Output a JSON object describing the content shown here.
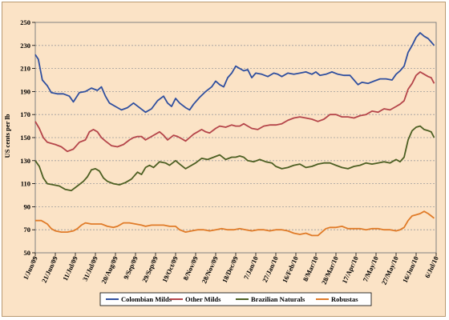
{
  "chart_data": {
    "type": "line",
    "title": "",
    "xlabel": "",
    "ylabel": "US cents per lb",
    "ylim": [
      50,
      250
    ],
    "yticks": [
      50,
      70,
      90,
      110,
      130,
      150,
      170,
      190,
      210,
      230,
      250
    ],
    "x_tick_labels": [
      "1/Jun/09",
      "21/Jun/09",
      "11/Jul/09",
      "31/Jul/09",
      "20/Aug/09",
      "9/Sep/09",
      "29/Sep/09",
      "19/Oct/09",
      "8/Nov/09",
      "28/Nov/09",
      "18/Dec/09",
      "7/Jan/10",
      "27/Jan/10",
      "16/Feb/10",
      "8/Mar/10",
      "28/Mar/10",
      "17/Apr/10",
      "7/May/10",
      "27/May/10",
      "16/Jun/10",
      "6/Jul/10"
    ],
    "x_range_days": [
      0,
      400
    ],
    "grid": true,
    "legend_position": "bottom",
    "series": [
      {
        "name": "Colombian Milds",
        "color": "#2f4f9f",
        "points": [
          [
            0,
            222
          ],
          [
            3,
            218
          ],
          [
            7,
            200
          ],
          [
            12,
            195
          ],
          [
            16,
            189
          ],
          [
            22,
            188
          ],
          [
            28,
            188
          ],
          [
            34,
            186
          ],
          [
            38,
            181
          ],
          [
            44,
            189
          ],
          [
            50,
            190
          ],
          [
            56,
            193
          ],
          [
            62,
            191
          ],
          [
            66,
            194
          ],
          [
            70,
            186
          ],
          [
            74,
            180
          ],
          [
            80,
            177
          ],
          [
            86,
            174
          ],
          [
            92,
            176
          ],
          [
            98,
            180
          ],
          [
            104,
            176
          ],
          [
            110,
            172
          ],
          [
            116,
            175
          ],
          [
            122,
            182
          ],
          [
            128,
            186
          ],
          [
            132,
            180
          ],
          [
            136,
            177
          ],
          [
            140,
            184
          ],
          [
            144,
            180
          ],
          [
            150,
            176
          ],
          [
            154,
            174
          ],
          [
            158,
            179
          ],
          [
            164,
            185
          ],
          [
            170,
            190
          ],
          [
            176,
            194
          ],
          [
            180,
            199
          ],
          [
            184,
            196
          ],
          [
            188,
            194
          ],
          [
            192,
            202
          ],
          [
            196,
            206
          ],
          [
            200,
            212
          ],
          [
            204,
            210
          ],
          [
            208,
            208
          ],
          [
            212,
            209
          ],
          [
            216,
            202
          ],
          [
            220,
            206
          ],
          [
            226,
            205
          ],
          [
            232,
            203
          ],
          [
            238,
            206
          ],
          [
            242,
            205
          ],
          [
            246,
            203
          ],
          [
            252,
            206
          ],
          [
            258,
            205
          ],
          [
            264,
            206
          ],
          [
            270,
            207
          ],
          [
            276,
            205
          ],
          [
            280,
            207
          ],
          [
            284,
            204
          ],
          [
            290,
            205
          ],
          [
            296,
            207
          ],
          [
            302,
            205
          ],
          [
            308,
            204
          ],
          [
            314,
            204
          ],
          [
            318,
            200
          ],
          [
            322,
            196
          ],
          [
            326,
            198
          ],
          [
            332,
            197
          ],
          [
            338,
            199
          ],
          [
            344,
            201
          ],
          [
            350,
            201
          ],
          [
            356,
            200
          ],
          [
            360,
            205
          ],
          [
            364,
            208
          ],
          [
            368,
            212
          ],
          [
            372,
            224
          ],
          [
            376,
            230
          ],
          [
            380,
            237
          ],
          [
            384,
            241
          ],
          [
            388,
            238
          ],
          [
            392,
            236
          ],
          [
            395,
            233
          ],
          [
            398,
            230
          ]
        ]
      },
      {
        "name": "Other Milds",
        "color": "#b5454a",
        "points": [
          [
            0,
            164
          ],
          [
            4,
            158
          ],
          [
            8,
            150
          ],
          [
            12,
            146
          ],
          [
            16,
            145
          ],
          [
            20,
            144
          ],
          [
            26,
            142
          ],
          [
            32,
            138
          ],
          [
            38,
            140
          ],
          [
            44,
            146
          ],
          [
            50,
            148
          ],
          [
            54,
            155
          ],
          [
            58,
            157
          ],
          [
            62,
            155
          ],
          [
            66,
            150
          ],
          [
            70,
            147
          ],
          [
            76,
            143
          ],
          [
            82,
            142
          ],
          [
            88,
            144
          ],
          [
            94,
            148
          ],
          [
            98,
            150
          ],
          [
            102,
            151
          ],
          [
            106,
            151
          ],
          [
            110,
            148
          ],
          [
            114,
            150
          ],
          [
            118,
            152
          ],
          [
            124,
            155
          ],
          [
            128,
            152
          ],
          [
            132,
            148
          ],
          [
            138,
            152
          ],
          [
            142,
            151
          ],
          [
            146,
            149
          ],
          [
            150,
            147
          ],
          [
            154,
            150
          ],
          [
            158,
            153
          ],
          [
            162,
            155
          ],
          [
            166,
            157
          ],
          [
            170,
            155
          ],
          [
            174,
            154
          ],
          [
            180,
            158
          ],
          [
            184,
            160
          ],
          [
            190,
            159
          ],
          [
            196,
            161
          ],
          [
            200,
            160
          ],
          [
            204,
            160
          ],
          [
            208,
            162
          ],
          [
            212,
            160
          ],
          [
            216,
            158
          ],
          [
            222,
            157
          ],
          [
            228,
            160
          ],
          [
            234,
            161
          ],
          [
            240,
            161
          ],
          [
            246,
            162
          ],
          [
            252,
            165
          ],
          [
            258,
            167
          ],
          [
            264,
            168
          ],
          [
            270,
            167
          ],
          [
            276,
            166
          ],
          [
            282,
            164
          ],
          [
            288,
            166
          ],
          [
            294,
            170
          ],
          [
            300,
            170
          ],
          [
            306,
            168
          ],
          [
            312,
            168
          ],
          [
            318,
            167
          ],
          [
            324,
            169
          ],
          [
            330,
            170
          ],
          [
            336,
            173
          ],
          [
            342,
            172
          ],
          [
            348,
            175
          ],
          [
            354,
            174
          ],
          [
            360,
            177
          ],
          [
            364,
            179
          ],
          [
            368,
            182
          ],
          [
            372,
            192
          ],
          [
            376,
            197
          ],
          [
            380,
            204
          ],
          [
            384,
            207
          ],
          [
            388,
            205
          ],
          [
            392,
            203
          ],
          [
            395,
            202
          ],
          [
            398,
            197
          ]
        ]
      },
      {
        "name": "Brazilian Naturals",
        "color": "#4c5f22",
        "points": [
          [
            0,
            130
          ],
          [
            4,
            125
          ],
          [
            8,
            115
          ],
          [
            12,
            110
          ],
          [
            18,
            109
          ],
          [
            24,
            108
          ],
          [
            30,
            105
          ],
          [
            36,
            104
          ],
          [
            42,
            108
          ],
          [
            48,
            112
          ],
          [
            52,
            116
          ],
          [
            56,
            122
          ],
          [
            60,
            123
          ],
          [
            64,
            121
          ],
          [
            68,
            115
          ],
          [
            72,
            112
          ],
          [
            78,
            110
          ],
          [
            84,
            109
          ],
          [
            90,
            111
          ],
          [
            96,
            114
          ],
          [
            102,
            120
          ],
          [
            106,
            118
          ],
          [
            110,
            124
          ],
          [
            114,
            126
          ],
          [
            118,
            124
          ],
          [
            124,
            129
          ],
          [
            130,
            128
          ],
          [
            134,
            126
          ],
          [
            140,
            130
          ],
          [
            144,
            127
          ],
          [
            150,
            123
          ],
          [
            154,
            125
          ],
          [
            160,
            128
          ],
          [
            166,
            132
          ],
          [
            172,
            131
          ],
          [
            178,
            133
          ],
          [
            184,
            135
          ],
          [
            190,
            131
          ],
          [
            196,
            133
          ],
          [
            200,
            133
          ],
          [
            204,
            134
          ],
          [
            208,
            133
          ],
          [
            212,
            130
          ],
          [
            218,
            129
          ],
          [
            224,
            131
          ],
          [
            230,
            129
          ],
          [
            236,
            128
          ],
          [
            240,
            125
          ],
          [
            246,
            123
          ],
          [
            252,
            124
          ],
          [
            258,
            126
          ],
          [
            264,
            127
          ],
          [
            270,
            124
          ],
          [
            276,
            125
          ],
          [
            282,
            127
          ],
          [
            288,
            128
          ],
          [
            294,
            128
          ],
          [
            300,
            126
          ],
          [
            306,
            124
          ],
          [
            312,
            123
          ],
          [
            318,
            125
          ],
          [
            324,
            126
          ],
          [
            330,
            128
          ],
          [
            336,
            127
          ],
          [
            342,
            128
          ],
          [
            348,
            129
          ],
          [
            354,
            128
          ],
          [
            360,
            131
          ],
          [
            364,
            129
          ],
          [
            368,
            133
          ],
          [
            372,
            148
          ],
          [
            376,
            156
          ],
          [
            380,
            159
          ],
          [
            384,
            160
          ],
          [
            388,
            157
          ],
          [
            392,
            156
          ],
          [
            395,
            155
          ],
          [
            398,
            150
          ]
        ]
      },
      {
        "name": "Robustas",
        "color": "#e07b28",
        "points": [
          [
            0,
            78
          ],
          [
            6,
            78
          ],
          [
            12,
            75
          ],
          [
            16,
            71
          ],
          [
            20,
            69
          ],
          [
            26,
            68
          ],
          [
            32,
            68
          ],
          [
            38,
            69
          ],
          [
            42,
            71
          ],
          [
            46,
            74
          ],
          [
            50,
            76
          ],
          [
            56,
            75
          ],
          [
            60,
            75
          ],
          [
            66,
            75
          ],
          [
            72,
            73
          ],
          [
            78,
            72
          ],
          [
            82,
            73
          ],
          [
            88,
            76
          ],
          [
            94,
            76
          ],
          [
            100,
            75
          ],
          [
            106,
            74
          ],
          [
            110,
            73
          ],
          [
            116,
            74
          ],
          [
            122,
            74
          ],
          [
            128,
            74
          ],
          [
            134,
            73
          ],
          [
            140,
            73
          ],
          [
            144,
            70
          ],
          [
            150,
            68
          ],
          [
            156,
            69
          ],
          [
            162,
            70
          ],
          [
            168,
            70
          ],
          [
            174,
            69
          ],
          [
            180,
            70
          ],
          [
            186,
            71
          ],
          [
            192,
            70
          ],
          [
            198,
            70
          ],
          [
            204,
            71
          ],
          [
            210,
            70
          ],
          [
            216,
            69
          ],
          [
            222,
            70
          ],
          [
            228,
            70
          ],
          [
            234,
            69
          ],
          [
            240,
            70
          ],
          [
            246,
            70
          ],
          [
            252,
            69
          ],
          [
            258,
            67
          ],
          [
            264,
            66
          ],
          [
            270,
            67
          ],
          [
            276,
            65
          ],
          [
            282,
            65
          ],
          [
            286,
            68
          ],
          [
            290,
            71
          ],
          [
            294,
            72
          ],
          [
            300,
            72
          ],
          [
            306,
            73
          ],
          [
            312,
            71
          ],
          [
            318,
            71
          ],
          [
            324,
            71
          ],
          [
            330,
            70
          ],
          [
            336,
            71
          ],
          [
            342,
            71
          ],
          [
            348,
            70
          ],
          [
            354,
            70
          ],
          [
            360,
            69
          ],
          [
            364,
            70
          ],
          [
            368,
            72
          ],
          [
            372,
            78
          ],
          [
            376,
            82
          ],
          [
            380,
            83
          ],
          [
            384,
            84
          ],
          [
            388,
            86
          ],
          [
            392,
            84
          ],
          [
            395,
            82
          ],
          [
            398,
            80
          ]
        ]
      }
    ]
  }
}
